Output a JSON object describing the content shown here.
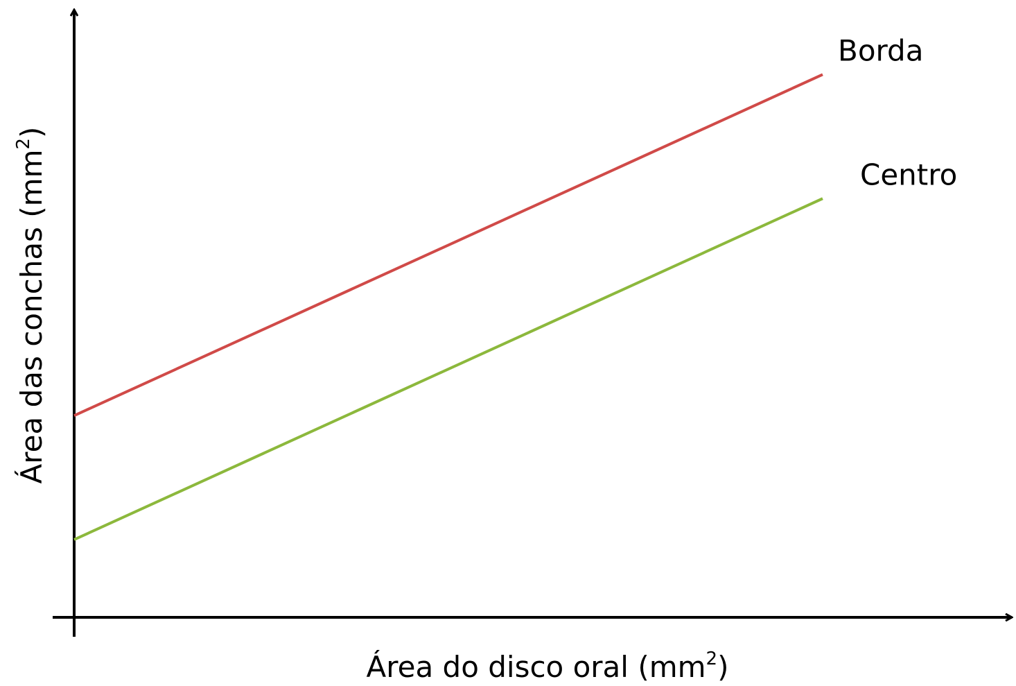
{
  "chart_data": {
    "type": "line",
    "title": "",
    "xlabel": "Área do disco oral (mm",
    "xlabel_sup": "2",
    "xlabel_close": ")",
    "ylabel": "Área das conchas (mm",
    "ylabel_sup": "2",
    "ylabel_close": ")",
    "xlim": [
      0,
      100
    ],
    "ylim": [
      0,
      100
    ],
    "grid": false,
    "axis_color": "#000000",
    "series": [
      {
        "name": "Borda",
        "color": "#d04a48",
        "x": [
          0,
          100
        ],
        "y": [
          33,
          99
        ]
      },
      {
        "name": "Centro",
        "color": "#8cb83c",
        "x": [
          0,
          100
        ],
        "y": [
          9,
          75
        ]
      }
    ]
  }
}
